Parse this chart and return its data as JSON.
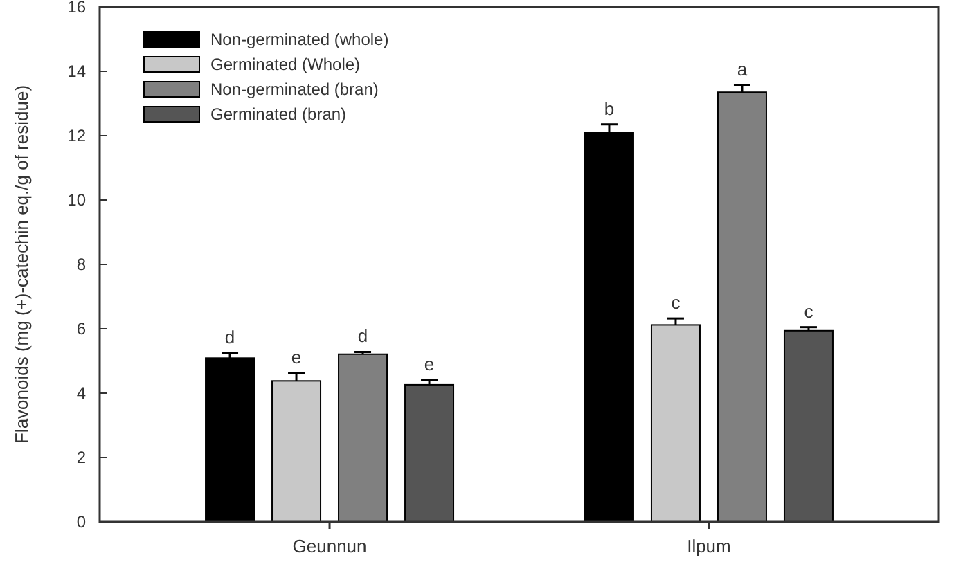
{
  "chart_data": {
    "type": "bar",
    "ylabel": "Flavonoids (mg (+)-catechin eq./g of residue)",
    "categories": [
      "Geunnun",
      "Ilpum"
    ],
    "series": [
      {
        "name": "Non-germinated (whole)",
        "color": "#000000",
        "values": [
          5.09,
          12.1
        ],
        "errors": [
          0.15,
          0.25
        ],
        "value_labels": [
          "d",
          "b"
        ]
      },
      {
        "name": "Germinated (Whole)",
        "color": "#c8c8c8",
        "values": [
          4.38,
          6.12
        ],
        "errors": [
          0.24,
          0.2
        ],
        "value_labels": [
          "e",
          "c"
        ]
      },
      {
        "name": "Non-germinated (bran)",
        "color": "#808080",
        "values": [
          5.21,
          13.35
        ],
        "errors": [
          0.07,
          0.23
        ],
        "value_labels": [
          "d",
          "a"
        ]
      },
      {
        "name": "Germinated (bran)",
        "color": "#555555",
        "values": [
          4.26,
          5.94
        ],
        "errors": [
          0.14,
          0.11
        ],
        "value_labels": [
          "e",
          "c"
        ]
      }
    ],
    "ylim": [
      0,
      16
    ],
    "yticks": [
      0,
      2,
      4,
      6,
      8,
      10,
      12,
      14,
      16
    ],
    "legend": "top left",
    "grid": false
  }
}
